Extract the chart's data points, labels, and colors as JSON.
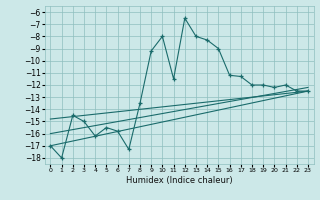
{
  "xlabel": "Humidex (Indice chaleur)",
  "xlim": [
    -0.5,
    23.5
  ],
  "ylim": [
    -18.5,
    -5.5
  ],
  "yticks": [
    -18,
    -17,
    -16,
    -15,
    -14,
    -13,
    -12,
    -11,
    -10,
    -9,
    -8,
    -7,
    -6
  ],
  "xticks": [
    0,
    1,
    2,
    3,
    4,
    5,
    6,
    7,
    8,
    9,
    10,
    11,
    12,
    13,
    14,
    15,
    16,
    17,
    18,
    19,
    20,
    21,
    22,
    23
  ],
  "bg_color": "#cce8e8",
  "grid_color": "#8fbfbf",
  "line_color": "#1a6b6b",
  "series1_x": [
    0,
    1,
    2,
    3,
    4,
    5,
    6,
    7,
    8,
    9,
    10,
    11,
    12,
    13,
    14,
    15,
    16,
    17,
    18,
    19,
    20,
    21,
    22,
    23
  ],
  "series1_y": [
    -17.0,
    -18.0,
    -14.5,
    -15.0,
    -16.2,
    -15.5,
    -15.8,
    -17.3,
    -13.5,
    -9.2,
    -8.0,
    -11.5,
    -6.5,
    -8.0,
    -8.3,
    -9.0,
    -11.2,
    -11.3,
    -12.0,
    -12.0,
    -12.2,
    -12.0,
    -12.5,
    -12.5
  ],
  "ref_lines": [
    {
      "x0": 0,
      "y0": -17.0,
      "x1": 23,
      "y1": -12.5
    },
    {
      "x0": 0,
      "y0": -16.0,
      "x1": 23,
      "y1": -12.2
    },
    {
      "x0": 0,
      "y0": -14.8,
      "x1": 23,
      "y1": -12.5
    }
  ]
}
